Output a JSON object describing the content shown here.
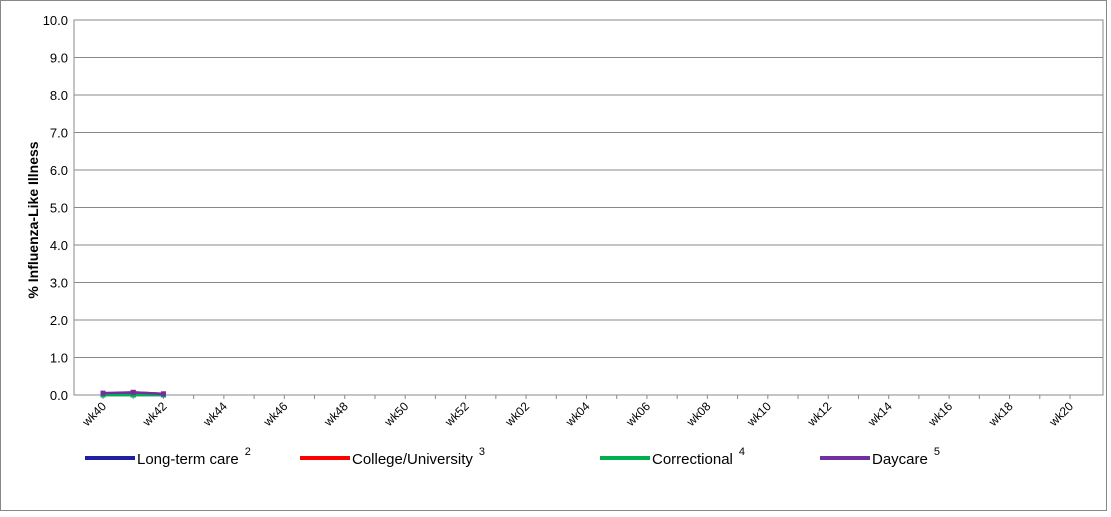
{
  "chart_data": {
    "type": "line",
    "y_label": "% Influenza-Like Illness",
    "categories": [
      "wk40",
      null,
      "wk42",
      null,
      "wk44",
      null,
      "wk46",
      null,
      "wk48",
      null,
      "wk50",
      null,
      "wk52",
      null,
      "wk02",
      null,
      "wk04",
      null,
      "wk06",
      null,
      "wk08",
      null,
      "wk10",
      null,
      "wk12",
      null,
      "wk14",
      null,
      "wk16",
      null,
      "wk18",
      null,
      "wk20"
    ],
    "series": [
      {
        "name": "Long-term care",
        "footnote": "2",
        "color": "#1f1fa0",
        "values": [
          0,
          0,
          0,
          null,
          null,
          null,
          null,
          null,
          null,
          null,
          null,
          null,
          null,
          null,
          null,
          null,
          null,
          null,
          null,
          null,
          null,
          null,
          null,
          null,
          null,
          null,
          null,
          null,
          null,
          null,
          null,
          null,
          null
        ]
      },
      {
        "name": "College/University",
        "footnote": "3",
        "color": "#ff0000",
        "values": [
          0,
          0.07,
          0.03,
          null,
          null,
          null,
          null,
          null,
          null,
          null,
          null,
          null,
          null,
          null,
          null,
          null,
          null,
          null,
          null,
          null,
          null,
          null,
          null,
          null,
          null,
          null,
          null,
          null,
          null,
          null,
          null,
          null,
          null
        ]
      },
      {
        "name": "Correctional",
        "footnote": "4",
        "color": "#00b050",
        "values": [
          0,
          0,
          0,
          null,
          null,
          null,
          null,
          null,
          null,
          null,
          null,
          null,
          null,
          null,
          null,
          null,
          null,
          null,
          null,
          null,
          null,
          null,
          null,
          null,
          null,
          null,
          null,
          null,
          null,
          null,
          null,
          null,
          null
        ]
      },
      {
        "name": "Daycare",
        "footnote": "5",
        "color": "#7030a0",
        "values": [
          0.05,
          0.07,
          0.03,
          null,
          null,
          null,
          null,
          null,
          null,
          null,
          null,
          null,
          null,
          null,
          null,
          null,
          null,
          null,
          null,
          null,
          null,
          null,
          null,
          null,
          null,
          null,
          null,
          null,
          null,
          null,
          null,
          null,
          null
        ]
      }
    ],
    "ylim": [
      0,
      10
    ],
    "yticks": [
      {
        "value": 0,
        "label": "0.0"
      },
      {
        "value": 1,
        "label": "1.0"
      },
      {
        "value": 2,
        "label": "2.0"
      },
      {
        "value": 3,
        "label": "3.0"
      },
      {
        "value": 4,
        "label": "4.0"
      },
      {
        "value": 5,
        "label": "5.0"
      },
      {
        "value": 6,
        "label": "6.0"
      },
      {
        "value": 7,
        "label": "7.0"
      },
      {
        "value": 8,
        "label": "8.0"
      },
      {
        "value": 9,
        "label": "9.0"
      },
      {
        "value": 10,
        "label": "10.0"
      }
    ],
    "grid": true
  }
}
